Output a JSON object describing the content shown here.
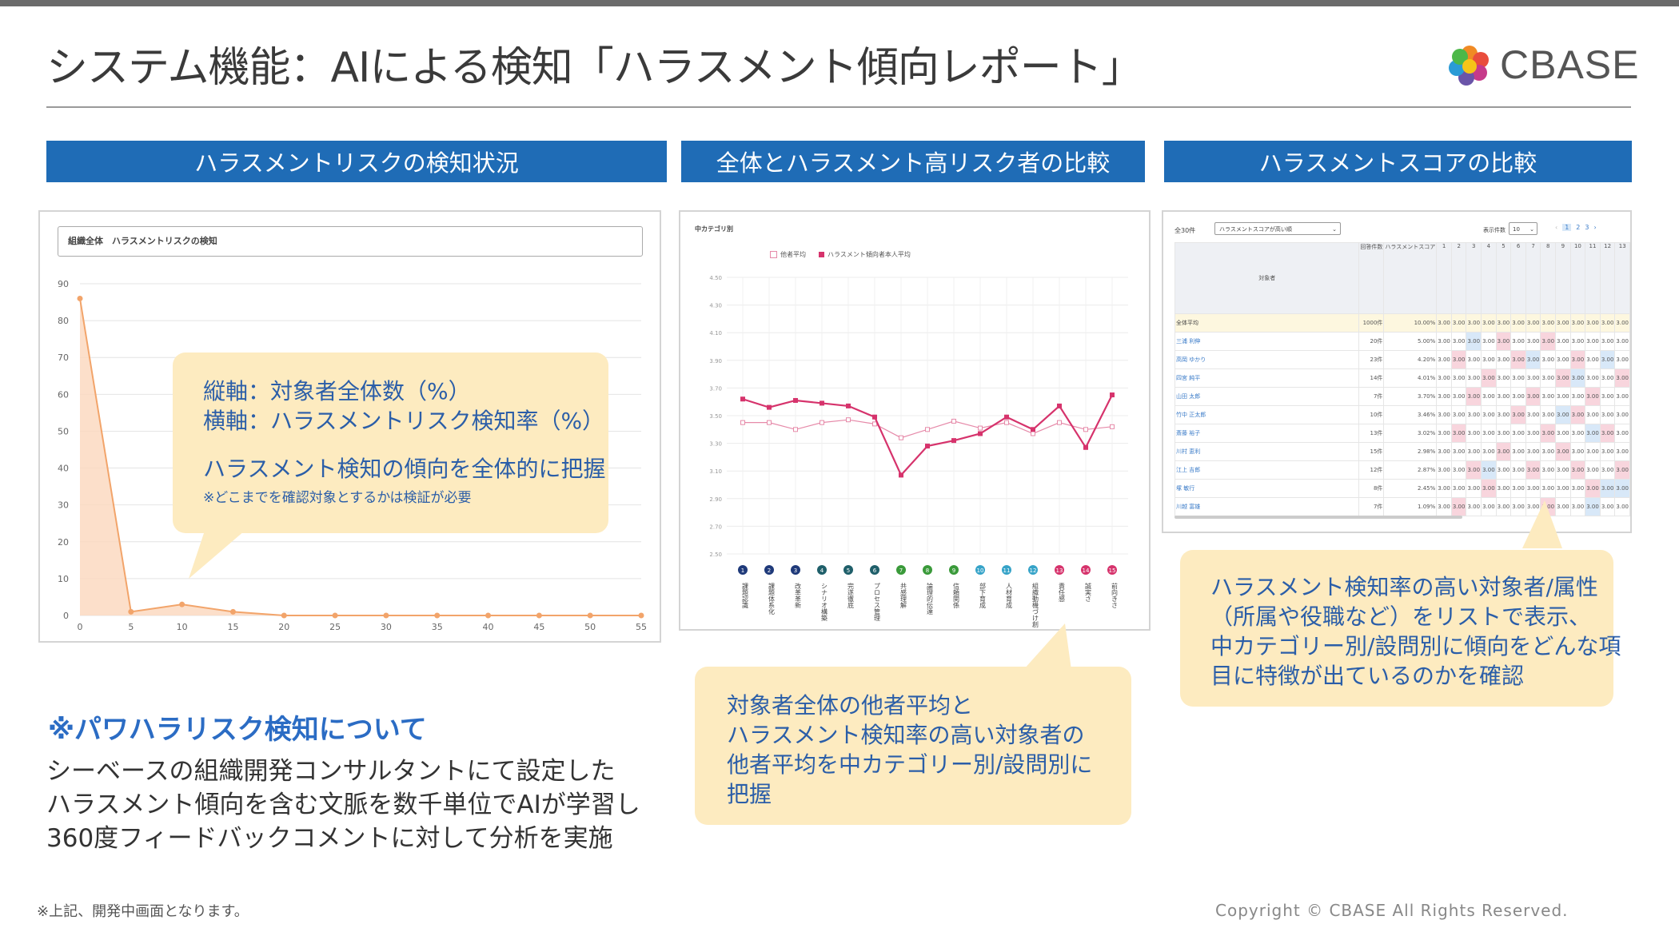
{
  "header": {
    "title": "システム機能：AIによる検知「ハラスメント傾向レポート」",
    "logo_text": "CBASE"
  },
  "sections": {
    "left_title": "ハラスメントリスクの検知状況",
    "middle_title": "全体とハラスメント高リスク者の比較",
    "right_title": "ハラスメントスコアの比較"
  },
  "left_chart": {
    "box_label": "組織全体　ハラスメントリスクの検知",
    "y_ticks": [
      "90",
      "80",
      "70",
      "60",
      "50",
      "40",
      "30",
      "20",
      "10",
      "0"
    ],
    "x_ticks": [
      "0",
      "5",
      "10",
      "15",
      "20",
      "25",
      "30",
      "35",
      "40",
      "45",
      "50",
      "55"
    ],
    "chart_data": {
      "type": "area",
      "x": [
        0,
        5,
        10,
        15,
        20,
        25,
        30,
        35,
        40,
        45,
        50,
        55
      ],
      "y": [
        86,
        1,
        3,
        1,
        0,
        0,
        0,
        0,
        0,
        0,
        0,
        0
      ],
      "ylim": [
        0,
        90
      ],
      "xlim": [
        0,
        55
      ],
      "color": "#f2a46a"
    }
  },
  "left_callout": {
    "line1": "縦軸：対象者全体数（%）",
    "line2": "横軸：ハラスメントリスク検知率（%）",
    "line3": "ハラスメント検知の傾向を全体的に把握",
    "line4": "※どこまでを確認対象とするかは検証が必要"
  },
  "middle_chart": {
    "heading": "中カテゴリ別",
    "legend_a": "他者平均",
    "legend_b": "ハラスメント傾向者本人平均",
    "y_ticks": [
      "4.50",
      "4.30",
      "4.10",
      "3.90",
      "3.70",
      "3.50",
      "3.30",
      "3.10",
      "2.90",
      "2.70",
      "2.50"
    ],
    "categories": [
      "課題認識",
      "課題体系化",
      "改革革新",
      "シナリオ構築",
      "完遂徹底",
      "プロセス管理",
      "共感理解",
      "論理的伝達",
      "信頼関係",
      "部下育成",
      "人材育成",
      "組織動機づけ創",
      "責任感",
      "誠実さ",
      "前向きさ"
    ],
    "category_nums": [
      "1",
      "2",
      "3",
      "4",
      "5",
      "6",
      "7",
      "8",
      "9",
      "10",
      "11",
      "12",
      "13",
      "14",
      "15"
    ],
    "chart_data": {
      "type": "line",
      "categories": [
        "課題認識",
        "課題体系化",
        "改革革新",
        "シナリオ構築",
        "完遂徹底",
        "プロセス管理",
        "共感理解",
        "論理的伝達",
        "信頼関係",
        "部下育成",
        "人材育成",
        "組織動機づけ創",
        "責任感",
        "誠実さ",
        "前向きさ"
      ],
      "ylim": [
        2.5,
        4.5
      ],
      "series": [
        {
          "name": "他者平均",
          "values": [
            3.45,
            3.45,
            3.4,
            3.45,
            3.47,
            3.44,
            3.34,
            3.4,
            3.46,
            3.41,
            3.45,
            3.37,
            3.45,
            3.4,
            3.42
          ],
          "color": "#e68aa9"
        },
        {
          "name": "ハラスメント傾向者本人平均",
          "values": [
            3.62,
            3.56,
            3.61,
            3.59,
            3.57,
            3.49,
            3.07,
            3.28,
            3.32,
            3.37,
            3.49,
            3.4,
            3.57,
            3.27,
            3.65
          ],
          "color": "#d6336c"
        }
      ]
    }
  },
  "middle_callout": {
    "line1": "対象者全体の他者平均と",
    "line2": "ハラスメント検知率の高い対象者の",
    "line3": "他者平均を中カテゴリー別/設問別に",
    "line4": "把握"
  },
  "right_table": {
    "count": "全30件",
    "sort_select": "ハラスメントスコアが高い順",
    "page_size_label": "表示件数",
    "page_size": "10",
    "pages": [
      "1",
      "2",
      "3"
    ],
    "col_target": "対象者",
    "col_count": "回答件数",
    "col_score": "ハラスメントスコア",
    "col_nums": [
      "1",
      "2",
      "3",
      "4",
      "5",
      "6",
      "7",
      "8",
      "9",
      "10",
      "11",
      "12",
      "13"
    ],
    "rows": [
      {
        "name": "全体平均",
        "n": "1000件",
        "s": "10.00%"
      },
      {
        "name": "三浦 利伸",
        "n": "20件",
        "s": "5.00%"
      },
      {
        "name": "高岡 ゆかり",
        "n": "23件",
        "s": "4.20%"
      },
      {
        "name": "四宮 純平",
        "n": "14件",
        "s": "4.01%"
      },
      {
        "name": "山田 太郎",
        "n": "7件",
        "s": "3.70%"
      },
      {
        "name": "竹中 正太郎",
        "n": "10件",
        "s": "3.46%"
      },
      {
        "name": "斎藤 裕子",
        "n": "13件",
        "s": "3.02%"
      },
      {
        "name": "川村 恵利",
        "n": "15件",
        "s": "2.98%"
      },
      {
        "name": "江上 吉郎",
        "n": "12件",
        "s": "2.87%"
      },
      {
        "name": "塚 敏行",
        "n": "8件",
        "s": "2.45%"
      },
      {
        "name": "川越 富雄",
        "n": "7件",
        "s": "1.09%"
      }
    ],
    "cell_value": "3.00"
  },
  "right_callout": {
    "line1": "ハラスメント検知率の高い対象者/属性",
    "line2": "（所属や役職など）をリストで表示、",
    "line3": "中カテゴリー別/設問別に傾向をどんな項",
    "line4": "目に特徴が出ているのかを確認"
  },
  "about": {
    "heading": "※パワハラリスク検知について",
    "line1": "シーベースの組織開発コンサルタントにて設定した",
    "line2": "ハラスメント傾向を含む文脈を数千単位でAIが学習し",
    "line3": "360度フィードバックコメントに対して分析を実施"
  },
  "footer": {
    "note": "※上記、開発中画面となります。",
    "copyright": "Copyright © CBASE All Rights Reserved."
  }
}
